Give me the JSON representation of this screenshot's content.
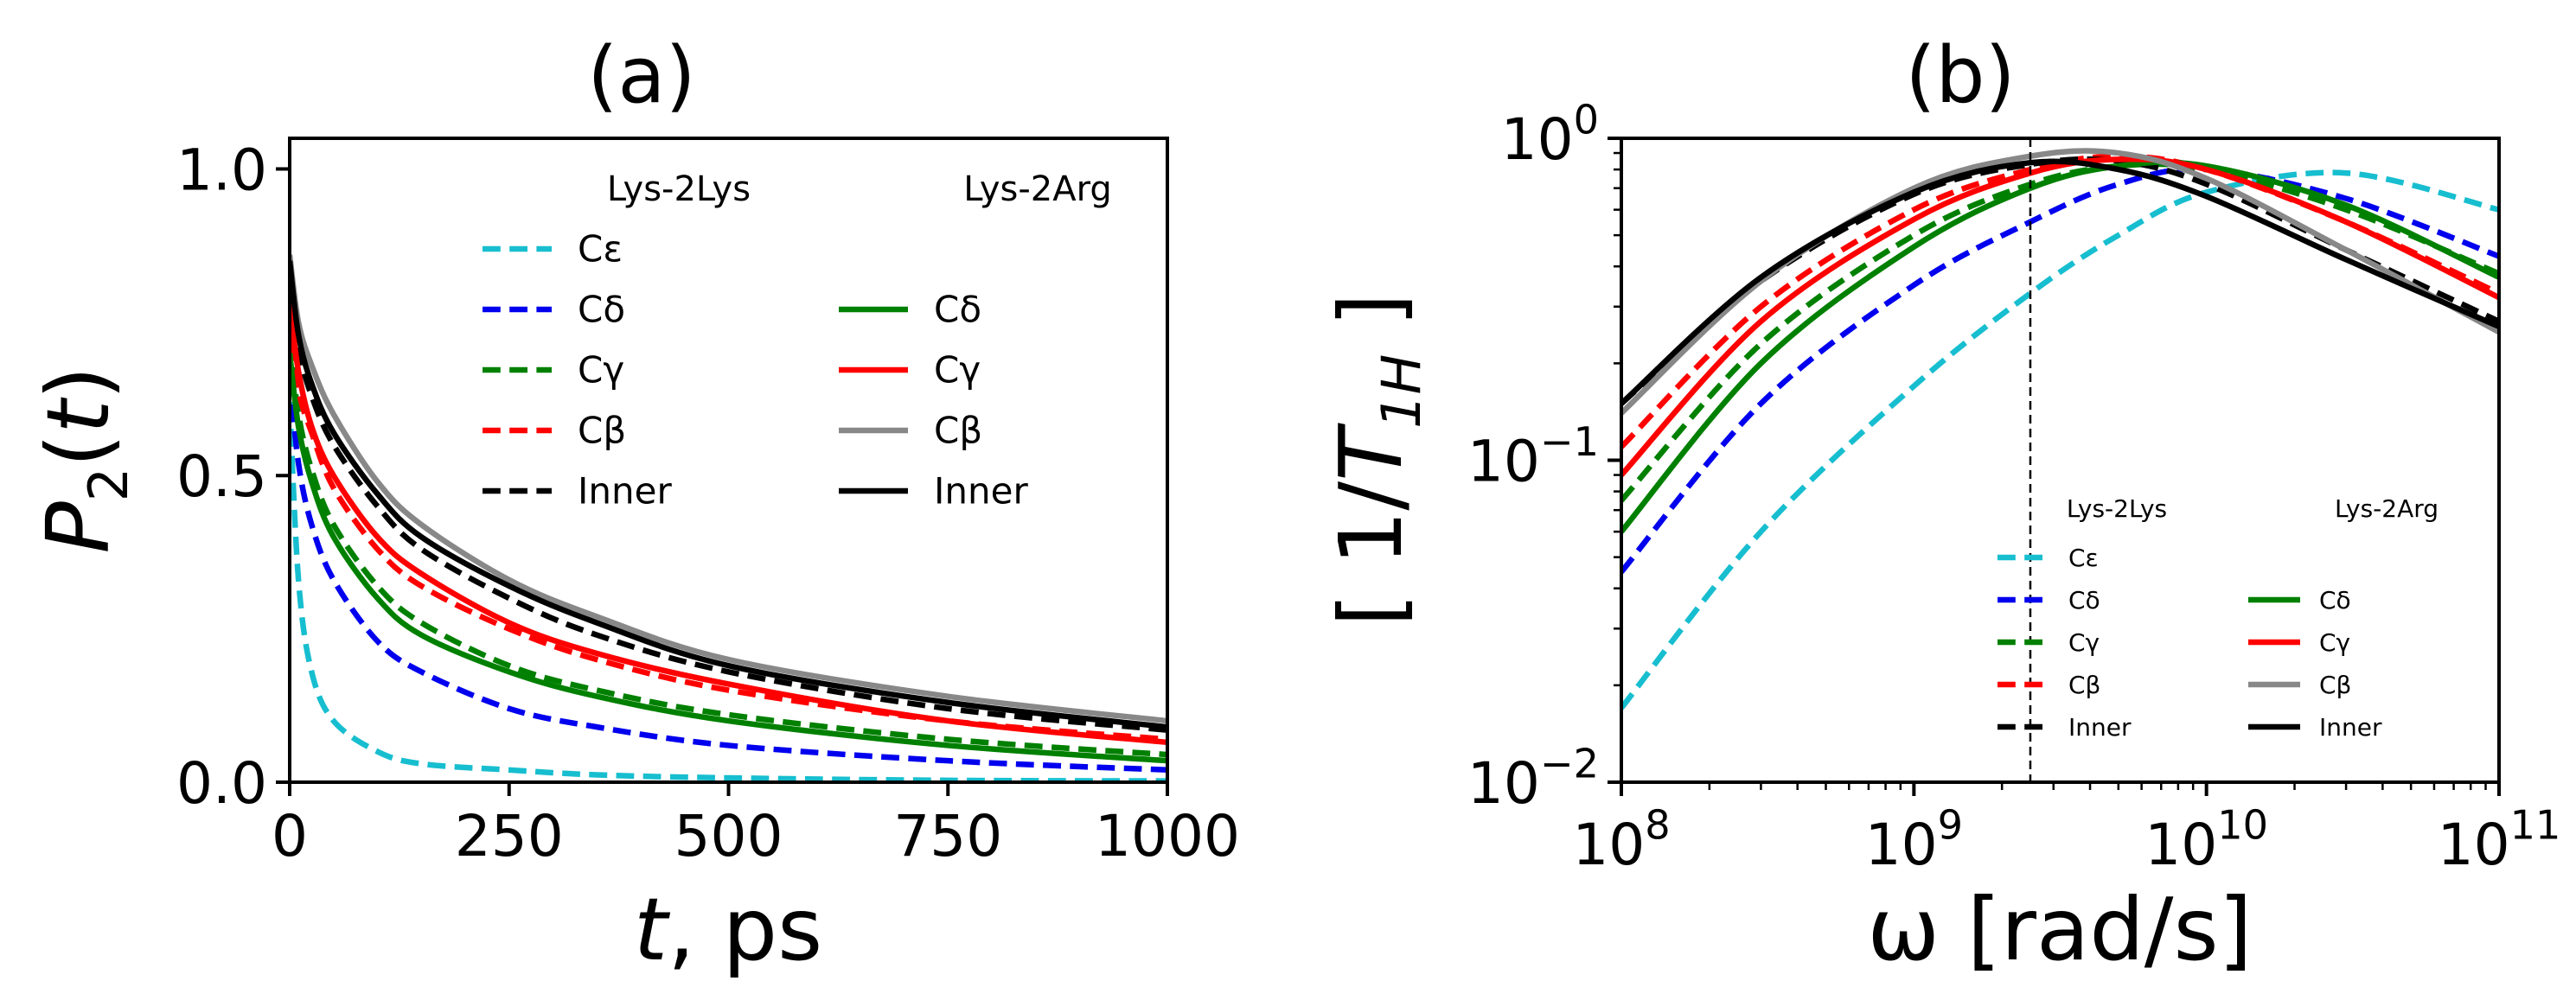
{
  "chart_data": [
    {
      "type": "line",
      "title": "(a)",
      "xlabel": "t, ps",
      "ylabel": "P2(t)",
      "xlim": [
        0,
        1000
      ],
      "ylim": [
        0,
        1.05
      ],
      "xticks": [
        "0",
        "250",
        "500",
        "750",
        "1000"
      ],
      "yticks": [
        "0.0",
        "0.5",
        "1.0"
      ],
      "grid": false,
      "legend": {
        "placement": "top-right",
        "group_titles": [
          "Lys-2Lys",
          "Lys-2Arg"
        ],
        "left_entries": [
          "Cε",
          "Cδ",
          "Cγ",
          "Cβ",
          "Inner"
        ],
        "right_entries": [
          "Cδ",
          "Cγ",
          "Cβ",
          "Inner"
        ]
      },
      "x": [
        0,
        10,
        25,
        50,
        100,
        150,
        250,
        350,
        500,
        750,
        1000
      ],
      "series": [
        {
          "name": "Cε",
          "group": "Lys-2Lys",
          "color": "#17becf",
          "dash": "dashed",
          "values": [
            0.62,
            0.33,
            0.18,
            0.1,
            0.05,
            0.03,
            0.02,
            0.012,
            0.007,
            0.003,
            0.002
          ]
        },
        {
          "name": "Cδ",
          "group": "Lys-2Lys",
          "color": "#0000ee",
          "dash": "dashed",
          "values": [
            0.66,
            0.52,
            0.42,
            0.33,
            0.23,
            0.18,
            0.12,
            0.09,
            0.06,
            0.035,
            0.02
          ]
        },
        {
          "name": "Cγ",
          "group": "Lys-2Lys",
          "color": "#008000",
          "dash": "dashed",
          "values": [
            0.72,
            0.6,
            0.51,
            0.42,
            0.32,
            0.26,
            0.19,
            0.15,
            0.11,
            0.07,
            0.045
          ]
        },
        {
          "name": "Cβ",
          "group": "Lys-2Lys",
          "color": "#ff0000",
          "dash": "dashed",
          "values": [
            0.76,
            0.64,
            0.57,
            0.48,
            0.38,
            0.32,
            0.25,
            0.2,
            0.15,
            0.1,
            0.07
          ]
        },
        {
          "name": "Inner",
          "group": "Lys-2Lys",
          "color": "#000000",
          "dash": "dashed",
          "values": [
            0.84,
            0.71,
            0.63,
            0.55,
            0.45,
            0.38,
            0.3,
            0.24,
            0.18,
            0.12,
            0.085
          ]
        },
        {
          "name": "Cδ",
          "group": "Lys-2Arg",
          "color": "#008000",
          "dash": "solid",
          "values": [
            0.7,
            0.58,
            0.49,
            0.4,
            0.3,
            0.24,
            0.18,
            0.14,
            0.1,
            0.06,
            0.035
          ]
        },
        {
          "name": "Cγ",
          "group": "Lys-2Arg",
          "color": "#ff0000",
          "dash": "solid",
          "values": [
            0.78,
            0.67,
            0.58,
            0.5,
            0.4,
            0.34,
            0.26,
            0.21,
            0.16,
            0.1,
            0.065
          ]
        },
        {
          "name": "Cβ",
          "group": "Lys-2Arg",
          "color": "#888888",
          "dash": "solid",
          "values": [
            0.86,
            0.75,
            0.68,
            0.6,
            0.49,
            0.42,
            0.33,
            0.27,
            0.2,
            0.14,
            0.1
          ]
        },
        {
          "name": "Inner",
          "group": "Lys-2Arg",
          "color": "#000000",
          "dash": "solid",
          "values": [
            0.85,
            0.73,
            0.65,
            0.57,
            0.47,
            0.4,
            0.32,
            0.26,
            0.19,
            0.13,
            0.09
          ]
        }
      ]
    },
    {
      "type": "line",
      "title": "(b)",
      "xlabel": "ω [rad/s]",
      "ylabel": "[ 1/T1H ]",
      "xscale": "log",
      "yscale": "log",
      "xlim": [
        100000000.0,
        100000000000.0
      ],
      "ylim": [
        0.01,
        1.0
      ],
      "xticks": [
        "10^8",
        "10^9",
        "10^10",
        "10^11"
      ],
      "yticks": [
        "10^-2",
        "10^-1",
        "10^0"
      ],
      "vline_x": 2500000000.0,
      "grid": false,
      "legend": {
        "placement": "bottom-right",
        "group_titles": [
          "Lys-2Lys",
          "Lys-2Arg"
        ],
        "left_entries": [
          "Cε",
          "Cδ",
          "Cγ",
          "Cβ",
          "Inner"
        ],
        "right_entries": [
          "Cδ",
          "Cγ",
          "Cβ",
          "Inner"
        ]
      },
      "x": [
        100000000.0,
        300000000.0,
        1000000000.0,
        2500000000.0,
        5000000000.0,
        10000000000.0,
        30000000000.0,
        100000000000.0
      ],
      "series": [
        {
          "name": "Cε",
          "group": "Lys-2Lys",
          "color": "#17becf",
          "dash": "dashed",
          "values": [
            0.017,
            0.06,
            0.17,
            0.33,
            0.5,
            0.68,
            0.78,
            0.6
          ]
        },
        {
          "name": "Cδ",
          "group": "Lys-2Lys",
          "color": "#0000ee",
          "dash": "dashed",
          "values": [
            0.045,
            0.15,
            0.35,
            0.55,
            0.72,
            0.8,
            0.65,
            0.43
          ]
        },
        {
          "name": "Cγ",
          "group": "Lys-2Lys",
          "color": "#008000",
          "dash": "dashed",
          "values": [
            0.075,
            0.23,
            0.5,
            0.72,
            0.82,
            0.8,
            0.6,
            0.38
          ]
        },
        {
          "name": "Cβ",
          "group": "Lys-2Lys",
          "color": "#ff0000",
          "dash": "dashed",
          "values": [
            0.11,
            0.3,
            0.6,
            0.8,
            0.88,
            0.8,
            0.55,
            0.33
          ]
        },
        {
          "name": "Inner",
          "group": "Lys-2Lys",
          "color": "#000000",
          "dash": "dashed",
          "values": [
            0.15,
            0.36,
            0.67,
            0.83,
            0.85,
            0.72,
            0.45,
            0.27
          ]
        },
        {
          "name": "Cδ",
          "group": "Lys-2Arg",
          "color": "#008000",
          "dash": "solid",
          "values": [
            0.06,
            0.2,
            0.46,
            0.7,
            0.82,
            0.82,
            0.62,
            0.37
          ]
        },
        {
          "name": "Cγ",
          "group": "Lys-2Arg",
          "color": "#ff0000",
          "dash": "solid",
          "values": [
            0.09,
            0.27,
            0.56,
            0.78,
            0.86,
            0.8,
            0.55,
            0.32
          ]
        },
        {
          "name": "Cβ",
          "group": "Lys-2Arg",
          "color": "#888888",
          "dash": "solid",
          "values": [
            0.14,
            0.36,
            0.7,
            0.88,
            0.9,
            0.75,
            0.45,
            0.25
          ]
        },
        {
          "name": "Inner",
          "group": "Lys-2Arg",
          "color": "#000000",
          "dash": "solid",
          "values": [
            0.15,
            0.37,
            0.68,
            0.84,
            0.8,
            0.66,
            0.42,
            0.26
          ]
        }
      ]
    }
  ]
}
